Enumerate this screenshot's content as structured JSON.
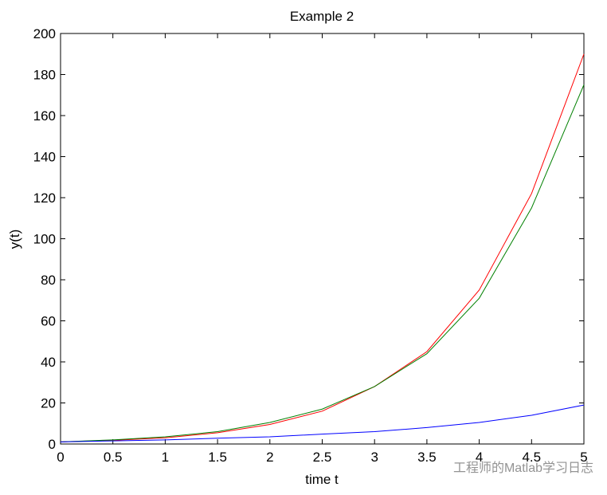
{
  "chart_data": {
    "type": "line",
    "title": "Example 2",
    "x_label": "time t",
    "y_label": "y(t)",
    "x": [
      0,
      0.5,
      1,
      1.5,
      2,
      2.5,
      3,
      3.5,
      4,
      4.5,
      5
    ],
    "series": [
      {
        "color": "#ff0000",
        "values": [
          1,
          1.8,
          3,
          5.5,
          9.5,
          16,
          28,
          45,
          75,
          122,
          190
        ]
      },
      {
        "color": "#008000",
        "values": [
          1,
          2,
          3.5,
          6,
          10.5,
          17,
          28,
          44,
          71,
          115,
          175
        ]
      },
      {
        "color": "#0000ff",
        "values": [
          1,
          1.5,
          2,
          2.8,
          3.5,
          4.8,
          6,
          8,
          10.5,
          14,
          19
        ]
      }
    ],
    "xlim": [
      0,
      5
    ],
    "xticks": [
      0,
      0.5,
      1,
      1.5,
      2,
      2.5,
      3,
      3.5,
      4,
      4.5,
      5
    ],
    "ylim": [
      0,
      200
    ],
    "yticks": [
      0,
      20,
      40,
      60,
      80,
      100,
      120,
      140,
      160,
      180,
      200
    ],
    "grid": false,
    "watermark": "工程师的Matlab学习日志"
  }
}
